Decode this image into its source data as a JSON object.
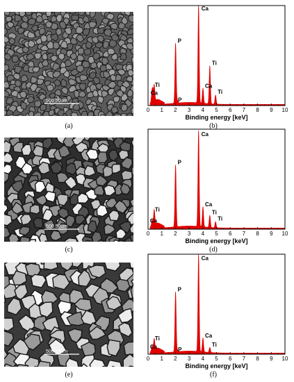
{
  "colors": {
    "spectrum_fill": "#e00000",
    "axis": "#000000"
  },
  "panels": [
    {
      "sem_label": "(a)",
      "edx_label": "(b)",
      "scale_text": "500  50um",
      "texture": "fine"
    },
    {
      "sem_label": "(c)",
      "edx_label": "(d)",
      "scale_text": "500  50um",
      "texture": "medium"
    },
    {
      "sem_label": "(e)",
      "edx_label": "(f)",
      "scale_text": "500  50um",
      "texture": "coarse"
    }
  ],
  "chart_data": [
    {
      "type": "area",
      "xlabel": "Binding energy [keV]",
      "xlim": [
        0,
        10
      ],
      "xticks": [
        "0",
        "1",
        "2",
        "3",
        "4",
        "5",
        "6",
        "7",
        "8",
        "9",
        "10"
      ],
      "ylim": [
        0,
        1
      ],
      "peaks": [
        {
          "x": 0.28,
          "y": 0.08,
          "label": ""
        },
        {
          "x": 0.34,
          "y": 0.1,
          "label": "Ca"
        },
        {
          "x": 0.45,
          "y": 0.16,
          "label": "Ti"
        },
        {
          "x": 2.01,
          "y": 0.6,
          "label": "P"
        },
        {
          "x": 2.14,
          "y": 0.03,
          "label": "P"
        },
        {
          "x": 3.69,
          "y": 0.98,
          "label": "Ca"
        },
        {
          "x": 4.01,
          "y": 0.15,
          "label": "Ca"
        },
        {
          "x": 4.51,
          "y": 0.38,
          "label": "Ti"
        },
        {
          "x": 4.93,
          "y": 0.09,
          "label": "Ti"
        }
      ]
    },
    {
      "type": "area",
      "xlabel": "Binding energy [keV]",
      "xlim": [
        0,
        10
      ],
      "xticks": [
        "0",
        "1",
        "2",
        "3",
        "4",
        "5",
        "6",
        "7",
        "8",
        "9",
        "10"
      ],
      "ylim": [
        0,
        1
      ],
      "peaks": [
        {
          "x": 0.3,
          "y": 0.06,
          "label": "Ca"
        },
        {
          "x": 0.45,
          "y": 0.15,
          "label": "Ti"
        },
        {
          "x": 2.01,
          "y": 0.62,
          "label": "P"
        },
        {
          "x": 3.69,
          "y": 0.96,
          "label": "Ca"
        },
        {
          "x": 4.01,
          "y": 0.2,
          "label": "Ca"
        },
        {
          "x": 4.51,
          "y": 0.12,
          "label": "Ti"
        },
        {
          "x": 4.93,
          "y": 0.06,
          "label": "Ti"
        }
      ]
    },
    {
      "type": "area",
      "xlabel": "Binding energy [keV]",
      "xlim": [
        0,
        10
      ],
      "xticks": [
        "0",
        "1",
        "2",
        "3",
        "4",
        "5",
        "6",
        "7",
        "8",
        "9",
        "10"
      ],
      "ylim": [
        0,
        1
      ],
      "peaks": [
        {
          "x": 0.3,
          "y": 0.05,
          "label": "Ca"
        },
        {
          "x": 0.45,
          "y": 0.11,
          "label": "Ti"
        },
        {
          "x": 2.01,
          "y": 0.6,
          "label": "P"
        },
        {
          "x": 2.14,
          "y": 0.02,
          "label": "P"
        },
        {
          "x": 3.69,
          "y": 0.97,
          "label": "Ca"
        },
        {
          "x": 4.01,
          "y": 0.14,
          "label": "Ca"
        },
        {
          "x": 4.51,
          "y": 0.05,
          "label": "Ti"
        }
      ]
    }
  ]
}
